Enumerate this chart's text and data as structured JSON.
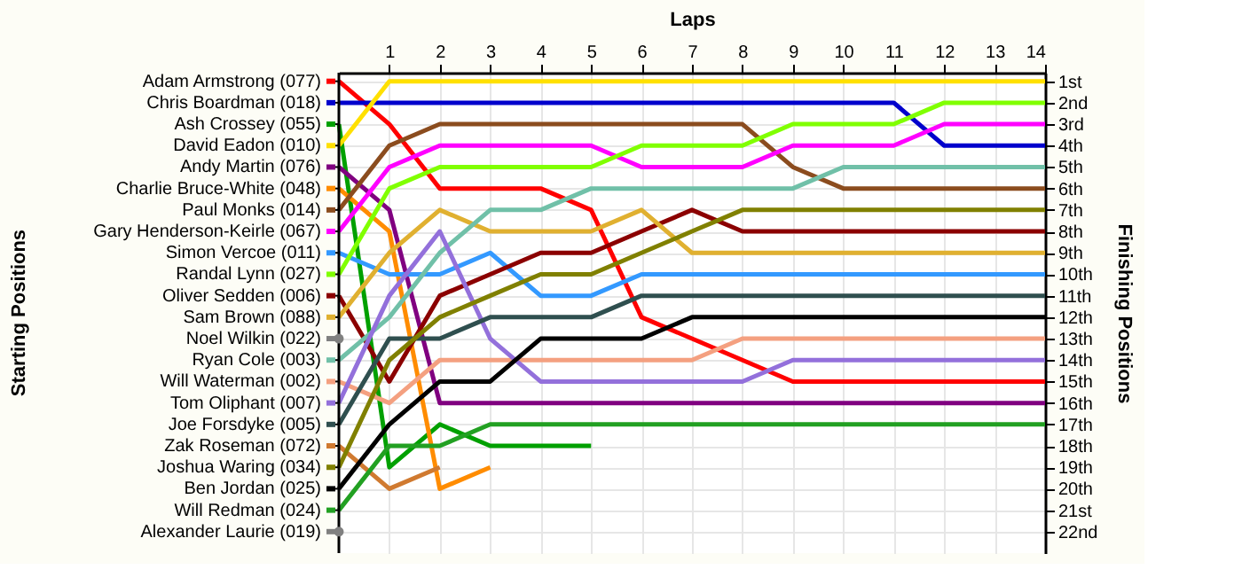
{
  "chart_data": {
    "type": "line",
    "xlabel": "Laps",
    "ylabel": "Finishing Positions",
    "annotations": [
      "Starting Positions"
    ],
    "legend": "left",
    "x": [
      0,
      1,
      2,
      3,
      4,
      5,
      6,
      7,
      8,
      9,
      10,
      11,
      12,
      13,
      14
    ],
    "xlim": [
      0,
      14
    ],
    "xticks": [
      1,
      2,
      3,
      4,
      5,
      6,
      7,
      8,
      9,
      10,
      11,
      12,
      13,
      14
    ],
    "ylim": [
      23,
      0.6
    ],
    "yticks": [
      {
        "value": 1,
        "label": "1st"
      },
      {
        "value": 2,
        "label": "2nd"
      },
      {
        "value": 3,
        "label": "3rd"
      },
      {
        "value": 4,
        "label": "4th"
      },
      {
        "value": 5,
        "label": "5th"
      },
      {
        "value": 6,
        "label": "6th"
      },
      {
        "value": 7,
        "label": "7th"
      },
      {
        "value": 8,
        "label": "8th"
      },
      {
        "value": 9,
        "label": "9th"
      },
      {
        "value": 10,
        "label": "10th"
      },
      {
        "value": 11,
        "label": "11th"
      },
      {
        "value": 12,
        "label": "12th"
      },
      {
        "value": 13,
        "label": "13th"
      },
      {
        "value": 14,
        "label": "14th"
      },
      {
        "value": 15,
        "label": "15th"
      },
      {
        "value": 16,
        "label": "16th"
      },
      {
        "value": 17,
        "label": "17th"
      },
      {
        "value": 18,
        "label": "18th"
      },
      {
        "value": 19,
        "label": "19th"
      },
      {
        "value": 20,
        "label": "20th"
      },
      {
        "value": 21,
        "label": "21st"
      },
      {
        "value": 22,
        "label": "22nd"
      }
    ],
    "grid": true,
    "marker": "none",
    "line_style": "solid",
    "series": [
      {
        "name": "Adam Armstrong (077)",
        "color": "#ff0000",
        "values": [
          1,
          3,
          6,
          6,
          6,
          7,
          12,
          13,
          14,
          15,
          15,
          15,
          15,
          15,
          15
        ]
      },
      {
        "name": "Chris Boardman (018)",
        "color": "#0000cc",
        "values": [
          2,
          2,
          2,
          2,
          2,
          2,
          2,
          2,
          2,
          2,
          2,
          2,
          4,
          4,
          4
        ]
      },
      {
        "name": "Ash Crossey (055)",
        "color": "#00a000",
        "values": [
          3,
          19,
          17,
          18,
          18,
          18,
          null,
          null,
          null,
          null,
          null,
          null,
          null,
          null,
          null
        ]
      },
      {
        "name": "David Eadon (010)",
        "color": "#ffe000",
        "values": [
          4,
          1,
          1,
          1,
          1,
          1,
          1,
          1,
          1,
          1,
          1,
          1,
          1,
          1,
          1
        ]
      },
      {
        "name": "Andy Martin (076)",
        "color": "#800080",
        "values": [
          5,
          7,
          16,
          16,
          16,
          16,
          16,
          16,
          16,
          16,
          16,
          16,
          16,
          16,
          16
        ]
      },
      {
        "name": "Charlie Bruce-White (048)",
        "color": "#ff8c00",
        "values": [
          6,
          8,
          20,
          19,
          null,
          null,
          null,
          null,
          null,
          null,
          null,
          null,
          null,
          null,
          null
        ]
      },
      {
        "name": "Paul Monks (014)",
        "color": "#8b4c1e",
        "values": [
          7,
          4,
          3,
          3,
          3,
          3,
          3,
          3,
          3,
          5,
          6,
          6,
          6,
          6,
          6
        ]
      },
      {
        "name": "Gary Henderson-Keirle (067)",
        "color": "#ff00ff",
        "values": [
          8,
          5,
          4,
          4,
          4,
          4,
          5,
          5,
          5,
          4,
          4,
          4,
          3,
          3,
          3
        ]
      },
      {
        "name": "Simon Vercoe (011)",
        "color": "#3399ff",
        "values": [
          9,
          10,
          10,
          9,
          11,
          11,
          10,
          10,
          10,
          10,
          10,
          10,
          10,
          10,
          10
        ]
      },
      {
        "name": "Randal Lynn (027)",
        "color": "#80ff00",
        "values": [
          10,
          6,
          5,
          5,
          5,
          5,
          4,
          4,
          4,
          3,
          3,
          3,
          2,
          2,
          2
        ]
      },
      {
        "name": "Oliver Sedden (006)",
        "color": "#8b0000",
        "values": [
          11,
          15,
          11,
          10,
          9,
          9,
          8,
          7,
          8,
          8,
          8,
          8,
          8,
          8,
          8
        ]
      },
      {
        "name": "Sam Brown (088)",
        "color": "#e0b030",
        "values": [
          12,
          9,
          7,
          8,
          8,
          8,
          7,
          9,
          9,
          9,
          9,
          9,
          9,
          9,
          9
        ]
      },
      {
        "name": "Noel Wilkin (022)",
        "color": "#808080",
        "marker": "circle",
        "values": [
          13,
          null,
          null,
          null,
          null,
          null,
          null,
          null,
          null,
          null,
          null,
          null,
          null,
          null,
          null
        ]
      },
      {
        "name": "Ryan Cole (003)",
        "color": "#70c0a8",
        "values": [
          14,
          12,
          9,
          7,
          7,
          6,
          6,
          6,
          6,
          6,
          5,
          5,
          5,
          5,
          5
        ]
      },
      {
        "name": "Will Waterman (002)",
        "color": "#f4a080",
        "values": [
          15,
          16,
          14,
          14,
          14,
          14,
          14,
          14,
          13,
          13,
          13,
          13,
          13,
          13,
          13
        ]
      },
      {
        "name": "Tom Oliphant (007)",
        "color": "#9370db",
        "values": [
          16,
          11,
          8,
          13,
          15,
          15,
          15,
          15,
          15,
          14,
          14,
          14,
          14,
          14,
          14
        ]
      },
      {
        "name": "Joe Forsdyke (005)",
        "color": "#2f4f4f",
        "values": [
          17,
          13,
          13,
          12,
          12,
          12,
          11,
          11,
          11,
          11,
          11,
          11,
          11,
          11,
          11
        ]
      },
      {
        "name": "Zak Roseman (072)",
        "color": "#d07a30",
        "values": [
          18,
          20,
          19,
          null,
          null,
          null,
          null,
          null,
          null,
          null,
          null,
          null,
          null,
          null,
          null
        ]
      },
      {
        "name": "Joshua Waring (034)",
        "color": "#808000",
        "values": [
          19,
          14,
          12,
          11,
          10,
          10,
          9,
          8,
          7,
          7,
          7,
          7,
          7,
          7,
          7
        ]
      },
      {
        "name": "Ben Jordan (025)",
        "color": "#000000",
        "values": [
          20,
          17,
          15,
          15,
          13,
          13,
          13,
          12,
          12,
          12,
          12,
          12,
          12,
          12,
          12
        ]
      },
      {
        "name": "Will Redman (024)",
        "color": "#22a022",
        "values": [
          21,
          18,
          18,
          17,
          17,
          17,
          17,
          17,
          17,
          17,
          17,
          17,
          17,
          17,
          17
        ]
      },
      {
        "name": "Alexander Laurie (019)",
        "color": "#808080",
        "marker": "circle",
        "values": [
          22,
          null,
          null,
          null,
          null,
          null,
          null,
          null,
          null,
          null,
          null,
          null,
          null,
          null,
          null
        ]
      }
    ]
  }
}
